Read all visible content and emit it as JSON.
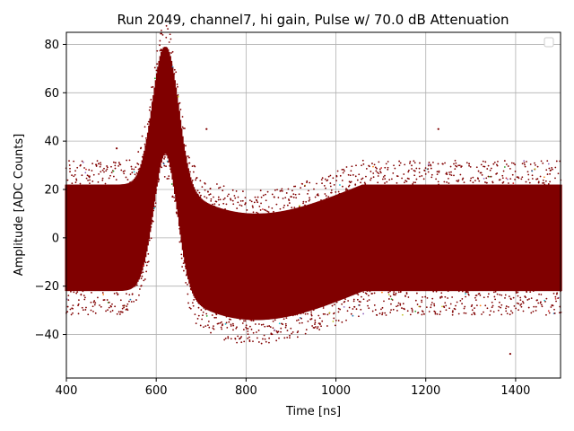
{
  "chart_data": {
    "type": "scatter",
    "title": "Run 2049, channel7, hi gain, Pulse w/ 70.0 dB Attenuation",
    "xlabel": "Time [ns]",
    "ylabel": "Amplitude [ADC Counts]",
    "xlim": [
      400,
      1500
    ],
    "ylim": [
      -58,
      85
    ],
    "xticks": [
      400,
      600,
      800,
      1000,
      1200,
      1400
    ],
    "yticks": [
      -40,
      -20,
      0,
      20,
      40,
      60,
      80
    ],
    "grid": true,
    "legend": {
      "placement": "top-right",
      "entries": []
    },
    "main_color": "#800000",
    "outlier_colors": [
      "#1f77b4",
      "#ff7f0e",
      "#2ca02c",
      "#d62728",
      "#9467bd",
      "#bcbd22",
      "#17becf"
    ],
    "band": {
      "baseline_center": 0,
      "baseline_halfwidth": 22,
      "pulse_peak_time": 620,
      "pulse_peak_amplitude": 57,
      "undershoot_min_time": 900,
      "undershoot_min_amplitude": -12,
      "recovery_time": 1060
    },
    "isolated_points": [
      {
        "x": 1228,
        "y": 45
      },
      {
        "x": 1388,
        "y": -48
      },
      {
        "x": 512,
        "y": 37
      },
      {
        "x": 712,
        "y": 45
      }
    ]
  }
}
